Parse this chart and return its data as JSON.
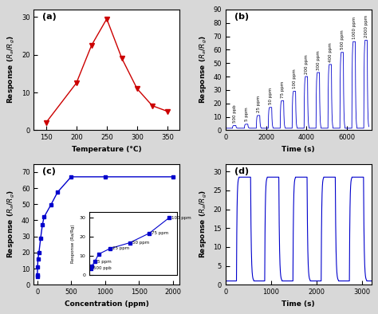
{
  "panel_a": {
    "x": [
      150,
      200,
      225,
      250,
      275,
      300,
      325,
      350
    ],
    "y": [
      2,
      12.5,
      22.5,
      29.5,
      19,
      11,
      6.5,
      5
    ],
    "color": "#cc0000",
    "marker": "v",
    "xlabel": "Temperature (°C)",
    "ylabel": "Response ($R_a$/$R_g$)",
    "xlim": [
      130,
      370
    ],
    "ylim": [
      0,
      32
    ],
    "yticks": [
      0,
      10,
      20,
      30
    ],
    "xticks": [
      150,
      200,
      250,
      300,
      350
    ],
    "label": "(a)"
  },
  "panel_b": {
    "peaks": [
      3.5,
      4.5,
      11,
      17,
      22,
      29,
      40,
      43,
      49,
      58,
      66,
      67
    ],
    "baseline": 1.5,
    "color": "#0000cc",
    "xlabel": "Time (s)",
    "ylabel": "Response ($R_a$/$R_g$)",
    "xlim": [
      0,
      7200
    ],
    "ylim": [
      0,
      90
    ],
    "yticks": [
      0,
      10,
      20,
      30,
      40,
      50,
      60,
      70,
      80,
      90
    ],
    "xticks": [
      0,
      2000,
      4000,
      6000
    ],
    "annotations": [
      "500 ppb",
      "5 ppm",
      "25 ppm",
      "50 ppm",
      "75 ppm",
      "100 ppm",
      "200 ppm",
      "300 ppm",
      "400 ppm",
      "500 ppm",
      "1000 ppm",
      "2000 ppm"
    ],
    "on_time": 250,
    "off_time": 340,
    "label": "(b)"
  },
  "panel_c": {
    "x": [
      0.5,
      1,
      5,
      10,
      25,
      50,
      75,
      100,
      200,
      300,
      500,
      1000,
      2000
    ],
    "y": [
      5,
      6,
      11,
      16,
      20,
      29,
      37,
      42,
      49.5,
      57.5,
      67,
      67,
      67
    ],
    "inset_x": [
      0.5,
      1,
      5,
      10,
      25,
      50,
      75,
      100
    ],
    "inset_y": [
      3.5,
      4.5,
      7,
      11,
      14,
      17,
      22,
      30
    ],
    "color": "#0000cc",
    "xlabel": "Concentration (ppm)",
    "ylabel": "Response ($R_a$/$R_g$)",
    "xlim": [
      -50,
      2100
    ],
    "ylim": [
      0,
      75
    ],
    "yticks": [
      0,
      10,
      20,
      30,
      40,
      50,
      60,
      70
    ],
    "xticks": [
      0,
      500,
      1000,
      1500,
      2000
    ],
    "label": "(c)"
  },
  "panel_d": {
    "num_cycles": 5,
    "peak_value": 28.5,
    "baseline": 1.0,
    "on_duration": 380,
    "off_duration": 240,
    "color": "#0000cc",
    "xlabel": "Time (s)",
    "ylabel": "Response ($R_a$/$R_g$)",
    "xlim": [
      0,
      3200
    ],
    "ylim": [
      0,
      32
    ],
    "yticks": [
      0,
      5,
      10,
      15,
      20,
      25,
      30
    ],
    "xticks": [
      0,
      1000,
      2000,
      3000
    ],
    "label": "(d)"
  },
  "bg_color": "#d8d8d8",
  "font_bold": true
}
